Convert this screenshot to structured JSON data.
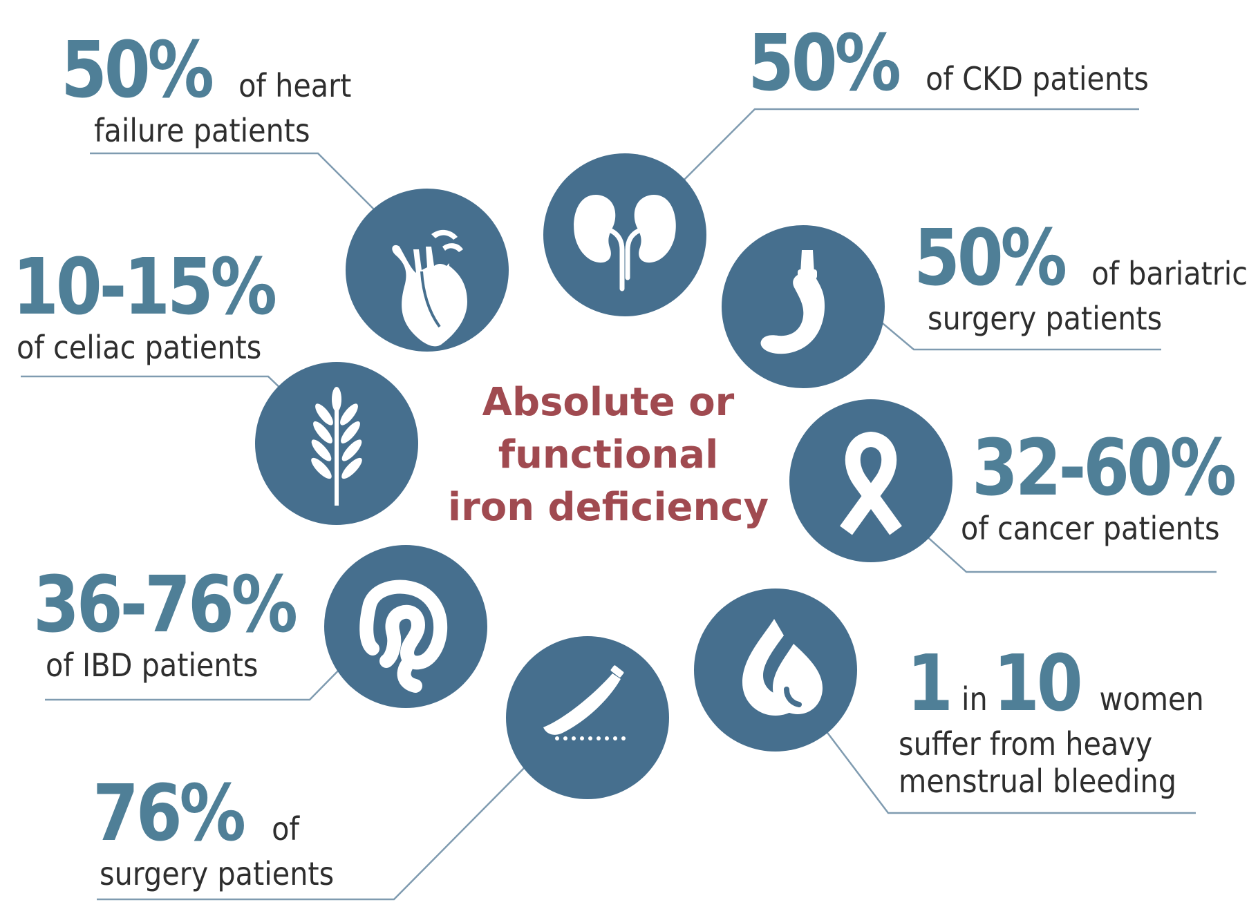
{
  "center": {
    "line1": "Absolute or",
    "line2": "functional",
    "line3": "iron deficiency"
  },
  "stats": {
    "heart": {
      "value": "50%",
      "text1": "of heart",
      "text2": "failure patients",
      "icon": "heart-icon"
    },
    "ckd": {
      "value": "50%",
      "text1": "of CKD patients",
      "icon": "kidneys-icon"
    },
    "bariatric": {
      "value": "50%",
      "text1": "of bariatric",
      "text2": "surgery patients",
      "icon": "stomach-icon"
    },
    "celiac": {
      "value": "10-15%",
      "text1": "of celiac patients",
      "icon": "wheat-icon"
    },
    "cancer": {
      "value": "32-60%",
      "text1": "of cancer patients",
      "icon": "ribbon-icon"
    },
    "ibd": {
      "value": "36-76%",
      "text1": "of IBD patients",
      "icon": "intestine-icon"
    },
    "menstrual": {
      "value1": "1",
      "in": "in",
      "value2": "10",
      "text1": "women",
      "text2": "suffer from heavy",
      "text3": "menstrual bleeding",
      "icon": "blood-drop-icon"
    },
    "surgery": {
      "value": "76%",
      "text1": "of",
      "text2": "surgery patients",
      "icon": "scalpel-icon"
    }
  },
  "colors": {
    "circle": "#466f8e",
    "number": "#4f7f97",
    "center_text": "#a04a50",
    "line": "#7f9bb0"
  }
}
